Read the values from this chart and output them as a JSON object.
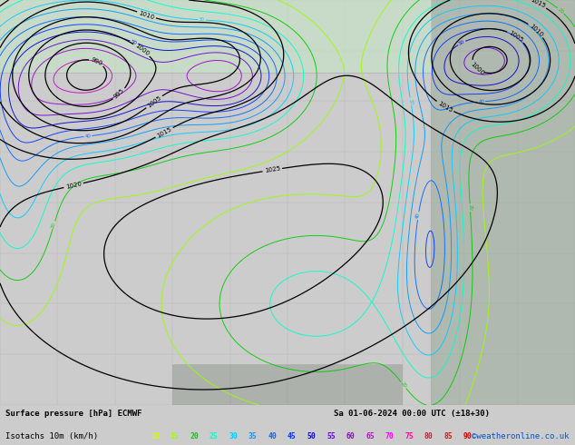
{
  "title_line1": "Surface pressure [hPa] ECMWF",
  "date_str": "Sa 01-06-2024 00:00 UTC (±18+30)",
  "legend_label": "Isotachs 10m (km/h)",
  "watermark": "©weatheronline.co.uk",
  "isotach_values": [
    10,
    15,
    20,
    25,
    30,
    35,
    40,
    45,
    50,
    55,
    60,
    65,
    70,
    75,
    80,
    85,
    90
  ],
  "isotach_colors": [
    "#ccff00",
    "#99ff00",
    "#00cc00",
    "#00ffcc",
    "#00ccff",
    "#0099ff",
    "#0066ff",
    "#0033ff",
    "#0000cc",
    "#6600cc",
    "#9900cc",
    "#cc00cc",
    "#ff00ff",
    "#ff0099",
    "#ff0033",
    "#ff0000",
    "#cc0000"
  ],
  "map_bg": "#ffffff",
  "land_color": "#c8e6c8",
  "bottom_bar_color": "#cccccc",
  "grid_color": "#aaaaaa",
  "figsize": [
    6.34,
    4.9
  ],
  "dpi": 100
}
